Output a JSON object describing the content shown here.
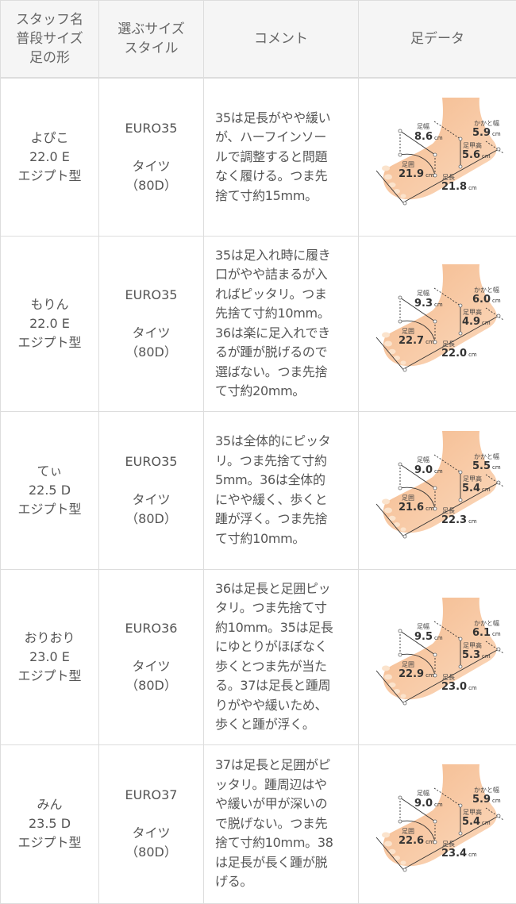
{
  "header": {
    "col1": [
      "スタッフ名",
      "普段サイズ",
      "足の形"
    ],
    "col2": [
      "選ぶサイズ",
      "スタイル"
    ],
    "col3": "コメント",
    "col4": "足データ"
  },
  "foot_labels": {
    "width": "足幅",
    "heel_width": "かかと幅",
    "instep": "足甲高",
    "girth": "足囲",
    "length": "足長",
    "unit": "cm"
  },
  "colors": {
    "skin": "#f6c199",
    "border": "#dddddd",
    "header_bg": "#f5f5f5"
  },
  "rows": [
    {
      "name": "よぴこ",
      "size": "22.0 E",
      "shape": "エジプト型",
      "euro": "EURO35",
      "style": "タイツ",
      "denier": "（80D）",
      "comment_lines": [
        "35は足長がやや緩い",
        "が、ハーフインソー",
        "ルで調整すると問題",
        "なく履ける。つま先",
        "捨て寸約15mm。"
      ],
      "foot": {
        "width": "8.6",
        "heel_width": "5.9",
        "instep": "5.6",
        "girth": "21.9",
        "length": "21.8"
      }
    },
    {
      "name": "もりん",
      "size": "22.0 E",
      "shape": "エジプト型",
      "euro": "EURO35",
      "style": "タイツ",
      "denier": "（80D）",
      "comment_lines": [
        "35は足入れ時に履き",
        "口がやや詰まるが入",
        "ればピッタリ。つま",
        "先捨て寸約10mm。",
        "36は楽に足入れでき",
        "るが踵が脱げるので",
        "選ばない。つま先捨",
        "て寸約20mm。"
      ],
      "foot": {
        "width": "9.3",
        "heel_width": "6.0",
        "instep": "4.9",
        "girth": "22.7",
        "length": "22.0"
      }
    },
    {
      "name": "てぃ",
      "size": "22.5 D",
      "shape": "エジプト型",
      "euro": "EURO35",
      "style": "タイツ",
      "denier": "（80D）",
      "comment_lines": [
        "35は全体的にピッタ",
        "リ。つま先捨て寸約",
        "5mm。36は全体的",
        "にやや緩く、歩くと",
        "踵が浮く。つま先捨",
        "て寸約10mm。"
      ],
      "foot": {
        "width": "9.0",
        "heel_width": "5.5",
        "instep": "5.4",
        "girth": "21.6",
        "length": "22.3"
      }
    },
    {
      "name": "おりおり",
      "size": "23.0 E",
      "shape": "エジプト型",
      "euro": "EURO36",
      "style": "タイツ",
      "denier": "（80D）",
      "comment_lines": [
        "36は足長と足囲ピッ",
        "タリ。つま先捨て寸",
        "約10mm。35は足長",
        "にゆとりがほぼなく",
        "歩くとつま先が当た",
        "る。37は足長と踵周",
        "りがやや緩いため、",
        "歩くと踵が浮く。"
      ],
      "foot": {
        "width": "9.5",
        "heel_width": "6.1",
        "instep": "5.3",
        "girth": "22.9",
        "length": "23.0"
      }
    },
    {
      "name": "みん",
      "size": "23.5 D",
      "shape": "エジプト型",
      "euro": "EURO37",
      "style": "タイツ",
      "denier": "（80D）",
      "comment_lines": [
        "37は足長と足囲がピ",
        "ッタリ。踵周辺はや",
        "や緩いが甲が深いの",
        "で脱げない。つま先",
        "捨て寸約10mm。38",
        "は足長が長く踵が脱",
        "げる。"
      ],
      "foot": {
        "width": "9.0",
        "heel_width": "5.9",
        "instep": "5.4",
        "girth": "22.6",
        "length": "23.4"
      }
    }
  ]
}
